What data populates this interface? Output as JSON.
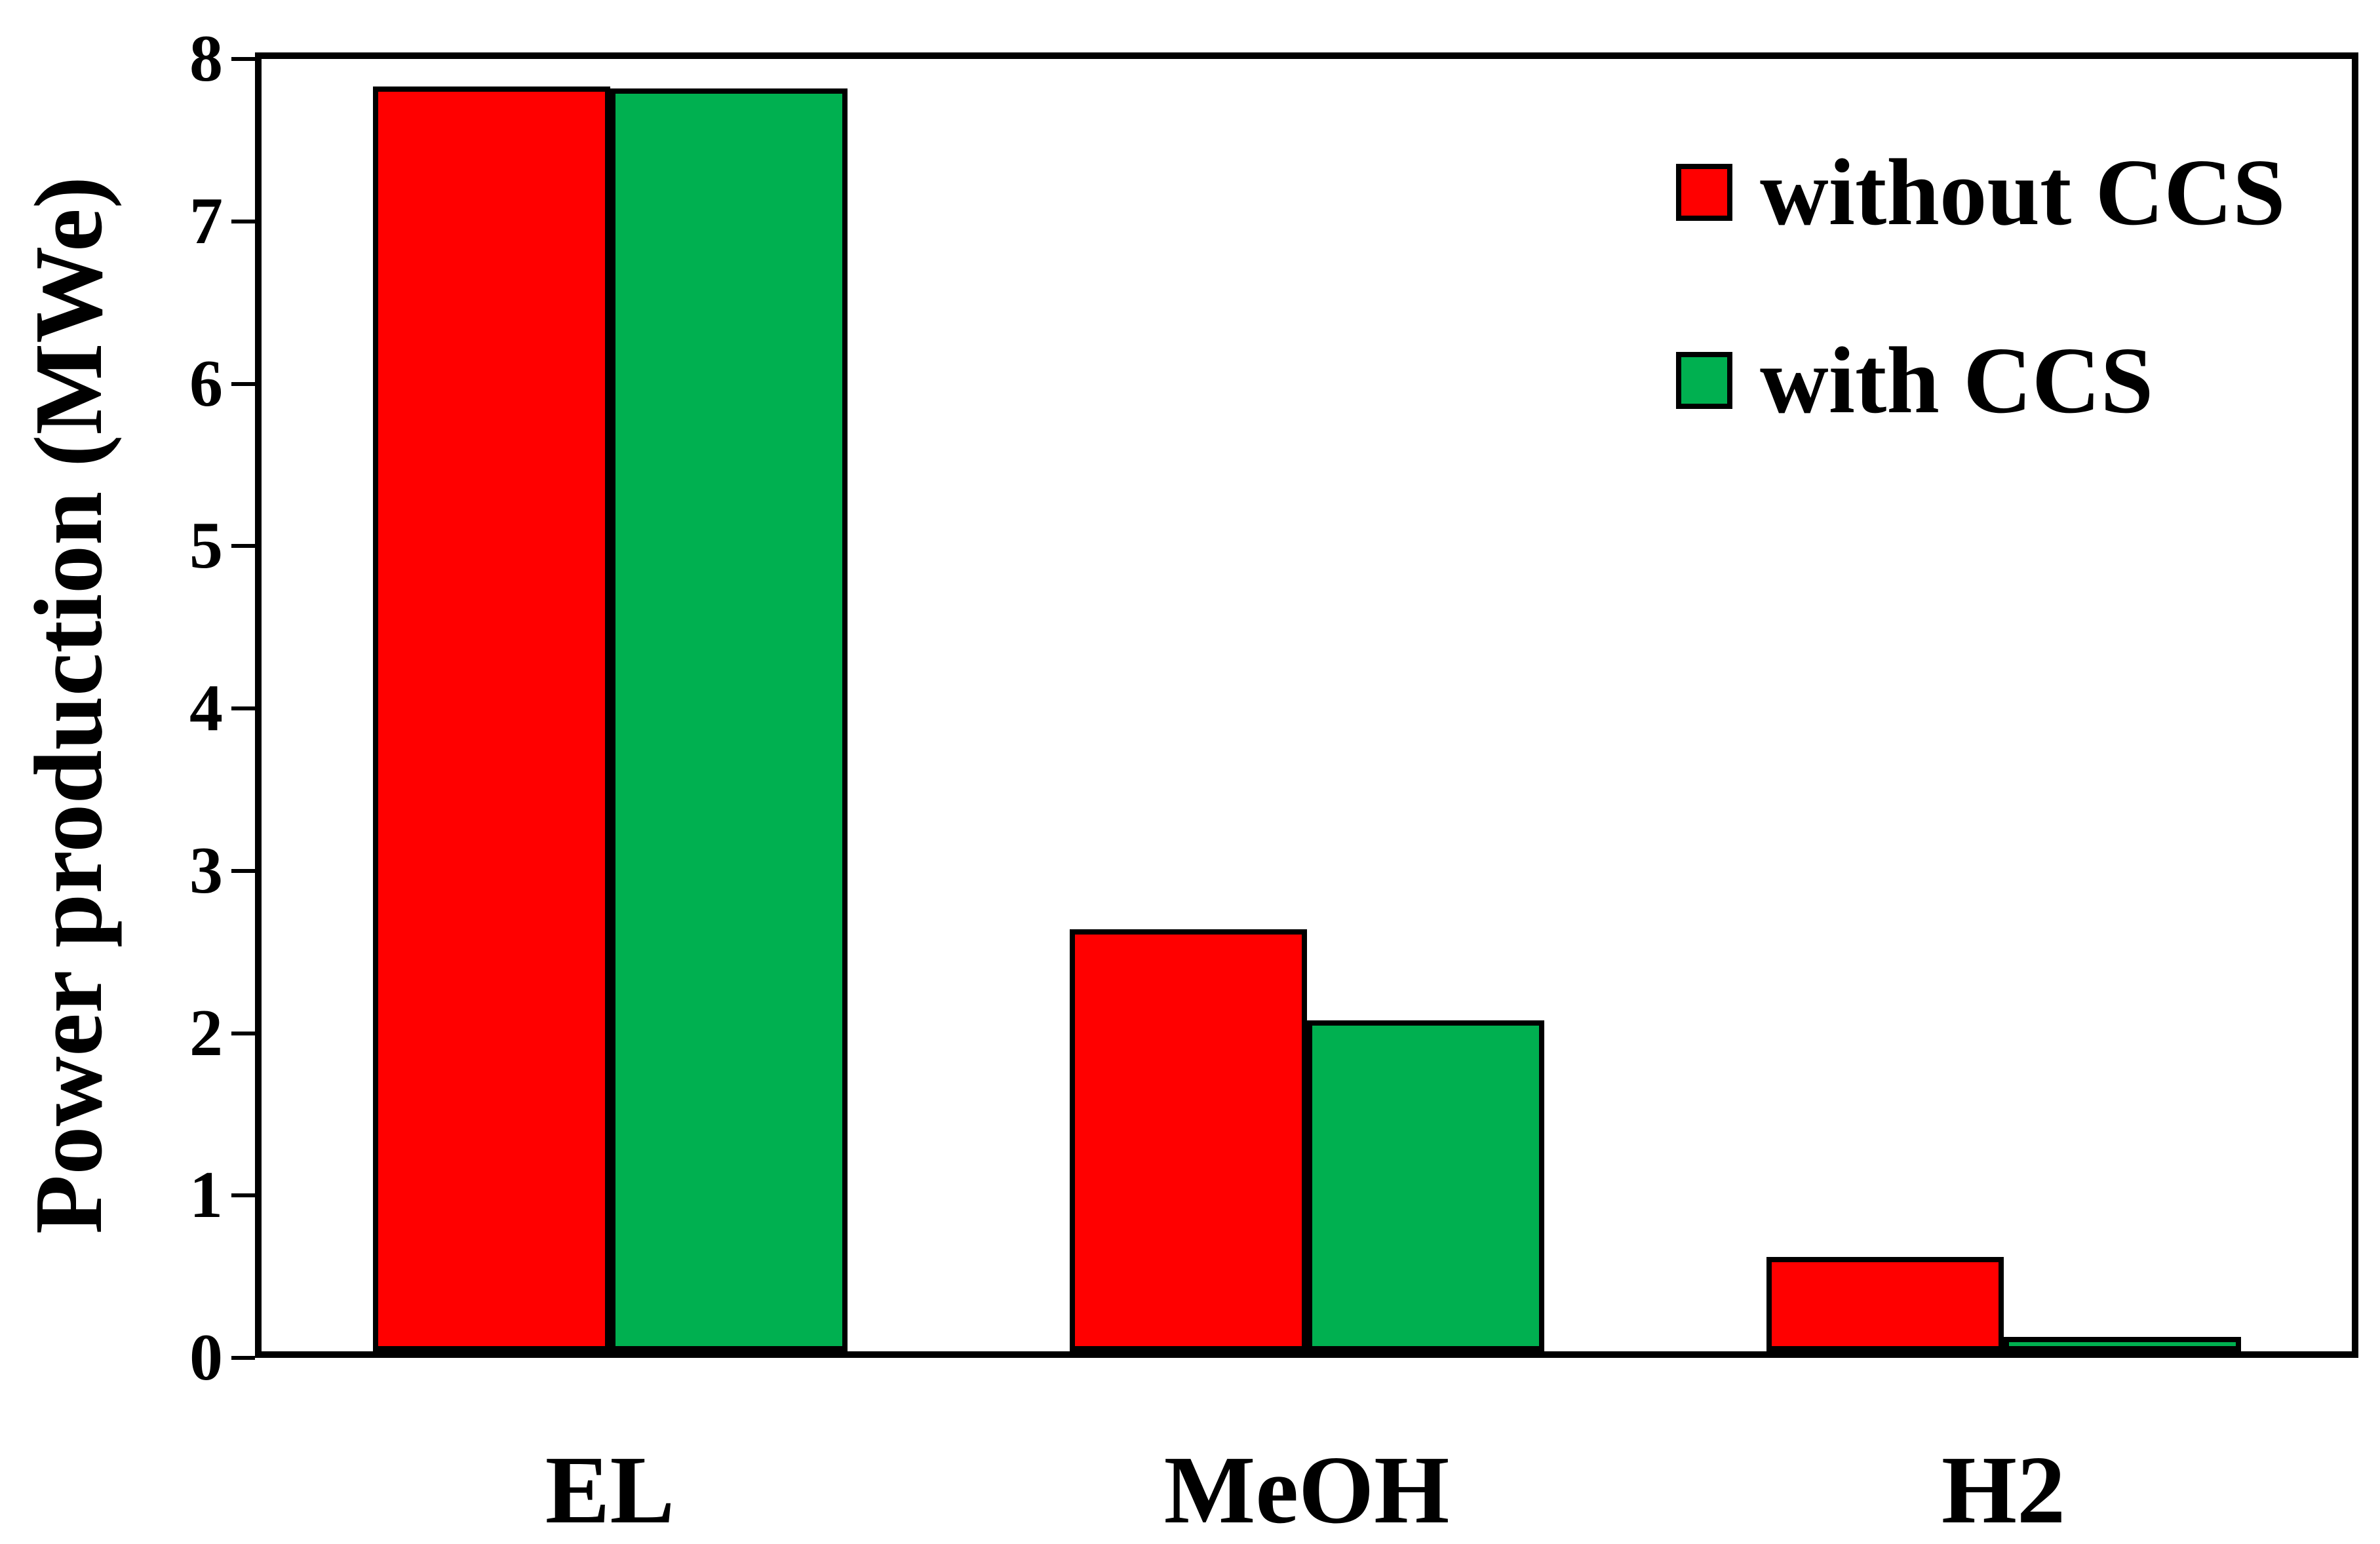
{
  "chart_data": {
    "type": "bar",
    "title": "",
    "categories": [
      "EL",
      "MeOH",
      "H2"
    ],
    "series": [
      {
        "name": "without CCS",
        "color": "#ff0000",
        "values": [
          7.79,
          2.6,
          0.58
        ]
      },
      {
        "name": "with CCS",
        "color": "#00b050",
        "values": [
          7.78,
          2.04,
          0.09
        ]
      }
    ],
    "xlabel": "",
    "ylabel": "Power production (MWe)",
    "ylim": [
      0,
      8
    ],
    "ytick_step": 1,
    "yticks": [
      0,
      1,
      2,
      3,
      4,
      5,
      6,
      7,
      8
    ],
    "grid": false,
    "legend_position": "upper-right",
    "bar_outline_color": "#000000",
    "frame": true
  }
}
